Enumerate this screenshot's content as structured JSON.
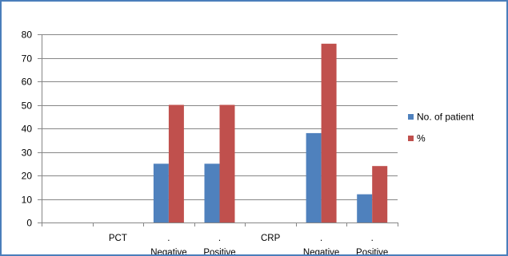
{
  "chart_data": {
    "type": "bar",
    "categories": [
      "",
      "PCT",
      "Negative",
      "Positive",
      "CRP",
      "Negative",
      "Positive"
    ],
    "category_prefix": [
      "",
      "",
      ".",
      ".",
      "",
      ".",
      "."
    ],
    "series": [
      {
        "name": "No. of patient",
        "values": [
          0,
          0,
          25,
          25,
          0,
          38,
          12
        ],
        "color": "#4f81bd"
      },
      {
        "name": "%",
        "values": [
          0,
          0,
          50,
          50,
          0,
          76,
          24
        ],
        "color": "#c0504d"
      }
    ],
    "title": "",
    "xlabel": "",
    "ylabel": "",
    "ylim": [
      0,
      80
    ],
    "yticks": [
      0,
      10,
      20,
      30,
      40,
      50,
      60,
      70,
      80
    ],
    "grid": true,
    "legend_position": "right",
    "colors": {
      "border": "#4a7ebb",
      "grid": "#868686",
      "axis": "#868686"
    }
  }
}
